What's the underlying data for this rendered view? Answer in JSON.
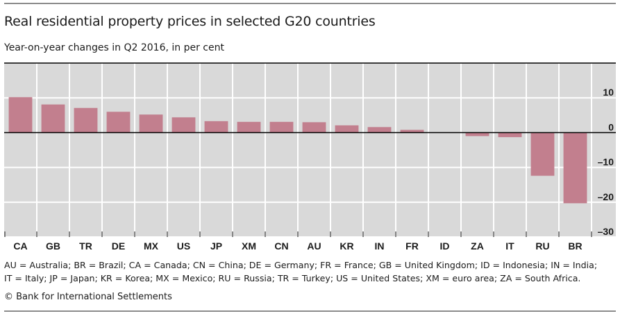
{
  "header": {
    "title": "Real residential property prices in selected G20 countries",
    "subtitle": "Year-on-year changes in Q2 2016, in per cent"
  },
  "chart_data": {
    "type": "bar",
    "title": "Real residential property prices in selected G20 countries",
    "subtitle": "Year-on-year changes in Q2 2016, in per cent",
    "xlabel": "",
    "ylabel": "",
    "categories": [
      "CA",
      "GB",
      "TR",
      "DE",
      "MX",
      "US",
      "JP",
      "XM",
      "CN",
      "AU",
      "KR",
      "IN",
      "FR",
      "ID",
      "ZA",
      "IT",
      "RU",
      "BR"
    ],
    "values": [
      10.2,
      8.1,
      7.1,
      6.0,
      5.2,
      4.4,
      3.3,
      3.1,
      3.1,
      3.0,
      2.1,
      1.6,
      0.8,
      0.0,
      -1.0,
      -1.3,
      -12.4,
      -20.3
    ],
    "ylim": [
      -30,
      20
    ],
    "yticks": [
      10,
      0,
      -10,
      -20,
      -30
    ],
    "ytick_labels": [
      "10",
      "0",
      "–10",
      "–20",
      "–30"
    ],
    "y_axis_side": "right",
    "grid": true,
    "legend": "none",
    "colors": {
      "bar": "#C27F8E",
      "plot_background": "#D9D9D9",
      "gridline": "#FFFFFF",
      "zero_line": "#000000"
    }
  },
  "footnote": {
    "line1": "AU = Australia; BR = Brazil; CA = Canada; CN = China; DE = Germany; FR = France; GB = United Kingdom; ID = Indonesia; IN = India;",
    "line2": "IT = Italy; JP = Japan; KR = Korea; MX = Mexico; RU = Russia; TR = Turkey; US = United States; XM = euro area; ZA = South Africa."
  },
  "source": {
    "copyright": "© Bank for International Settlements"
  }
}
